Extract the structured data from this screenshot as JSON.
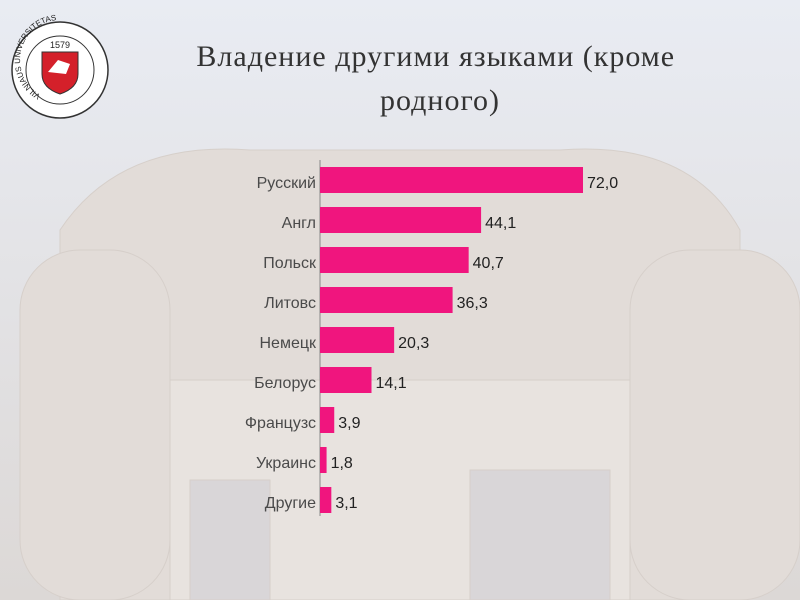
{
  "logo": {
    "year": "1579",
    "ring_text": "VILNIAUS UNIVERSITETAS"
  },
  "chart_data": {
    "type": "hbar",
    "title": "Владение другими языками (кроме родного)",
    "categories": [
      "Русский",
      "Англ",
      "Польск",
      "Литовс",
      "Немецк",
      "Белорус",
      "Французс",
      "Украинс",
      "Другие"
    ],
    "values": [
      72.0,
      44.1,
      40.7,
      36.3,
      20.3,
      14.1,
      3.9,
      1.8,
      3.1
    ],
    "value_labels": [
      "72,0",
      "44,1",
      "40,7",
      "36,3",
      "20,3",
      "14,1",
      "3,9",
      "1,8",
      "3,1"
    ],
    "color": "#f0157e",
    "xlim": [
      0,
      72
    ]
  }
}
